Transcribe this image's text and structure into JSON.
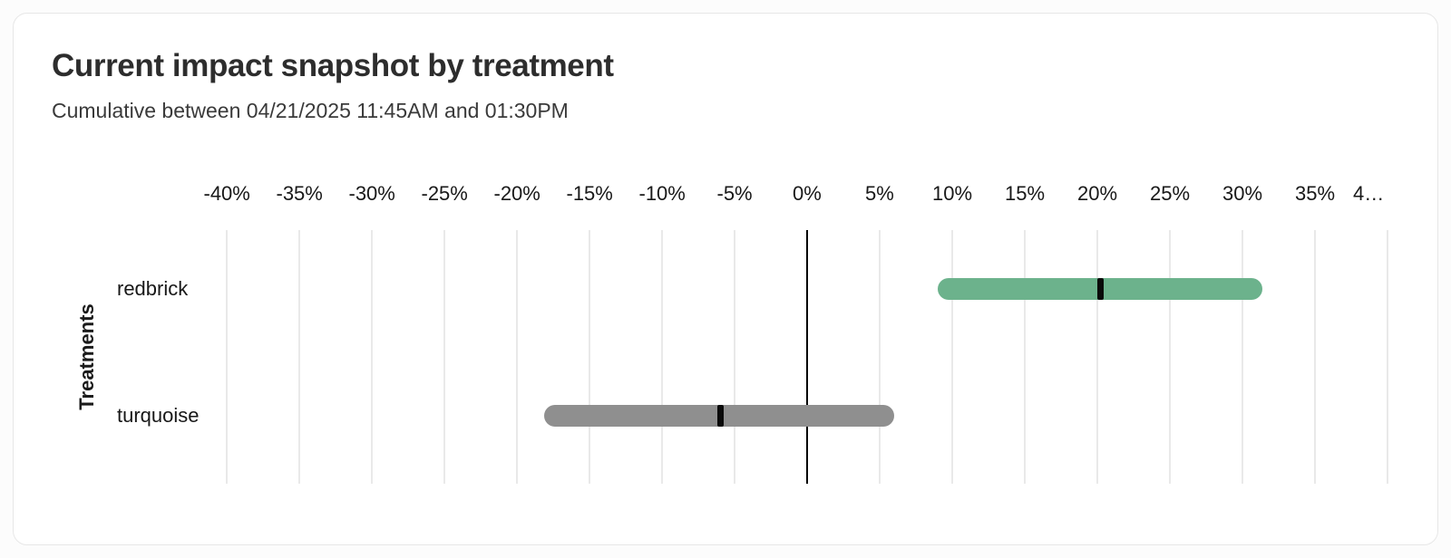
{
  "chart_data": {
    "type": "bar",
    "subtype": "horizontal-confidence-interval",
    "title": "Current impact snapshot by treatment",
    "subtitle": "Cumulative between 04/21/2025 11:45AM and 01:30PM",
    "xlabel": "",
    "ylabel": "Treatments",
    "categories": [
      "redbrick",
      "turquoise"
    ],
    "series": [
      {
        "name": "redbrick",
        "ci_low_pct": 9.0,
        "ci_high_pct": 31.4,
        "point_estimate_pct": 20.2,
        "color": "#6cb28c"
      },
      {
        "name": "turquoise",
        "ci_low_pct": -18.1,
        "ci_high_pct": 6.0,
        "point_estimate_pct": -6.0,
        "color": "#8f8f8f"
      }
    ],
    "x_axis": {
      "min": -40,
      "max": 40,
      "step": 5,
      "unit": "%",
      "position": "top",
      "grid": true,
      "zero_line": true,
      "tick_labels": [
        "-40%",
        "-35%",
        "-30%",
        "-25%",
        "-20%",
        "-15%",
        "-10%",
        "-5%",
        "0%",
        "5%",
        "10%",
        "15%",
        "20%",
        "25%",
        "30%",
        "35%",
        "4…"
      ]
    },
    "marker_color": "#0a0a0a",
    "legend": "none"
  },
  "colors": {
    "card_background": "#ffffff",
    "page_background": "#fcfcfc",
    "card_border": "#e7e7e7",
    "gridline": "#e9e9e9",
    "positive_bar": "#6cb28c",
    "neutral_bar": "#8f8f8f"
  }
}
